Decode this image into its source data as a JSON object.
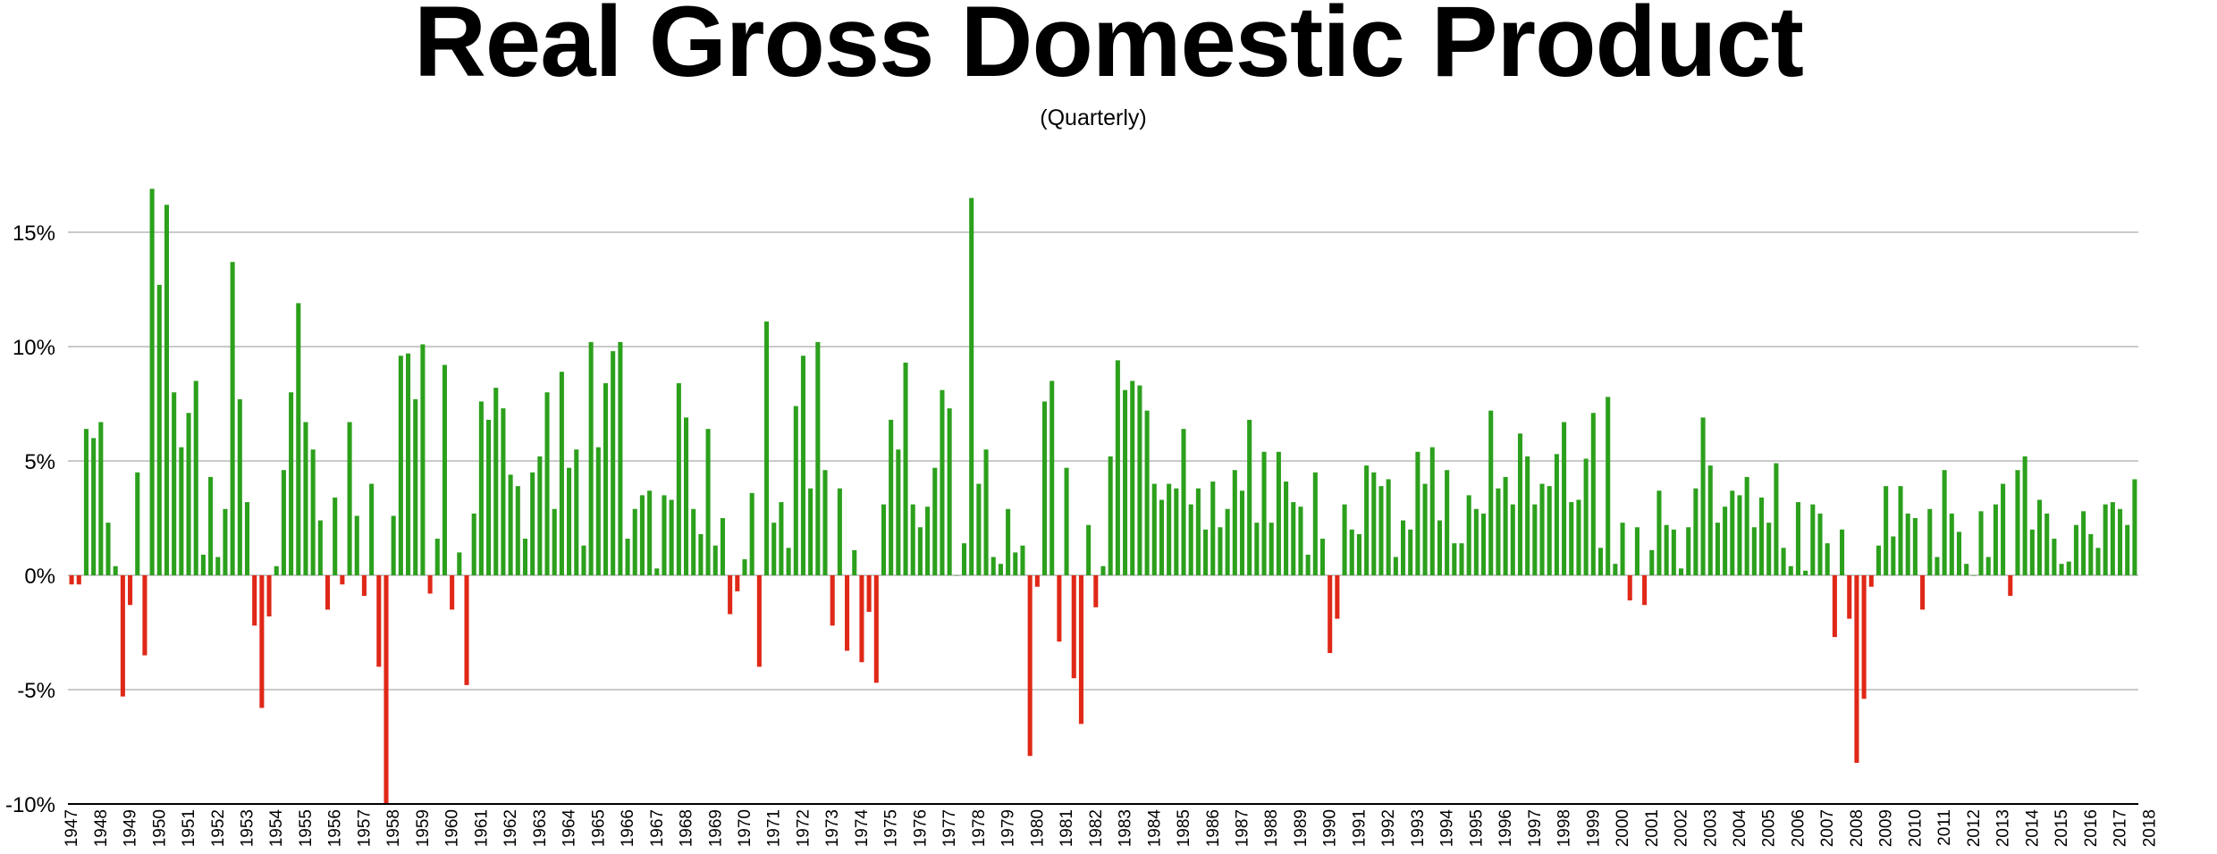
{
  "chart_data": {
    "type": "bar",
    "title": "Real Gross Domestic Product",
    "subtitle": "(Quarterly)",
    "xlabel": "",
    "ylabel": "",
    "ylim": [
      -10,
      17
    ],
    "y_ticks": [
      15,
      10,
      5,
      0,
      -5,
      -10
    ],
    "y_tick_labels": [
      "15%",
      "10%",
      "5%",
      "0%",
      "-5%",
      "-10%"
    ],
    "grid": true,
    "colors": {
      "positive": "#2ca01c",
      "negative": "#e02818",
      "grid": "#b8b8b8",
      "axis": "#000000"
    },
    "x_tick_labels": [
      "1947",
      "1948",
      "1949",
      "1950",
      "1951",
      "1952",
      "1953",
      "1954",
      "1955",
      "1956",
      "1957",
      "1958",
      "1959",
      "1960",
      "1961",
      "1962",
      "1963",
      "1964",
      "1965",
      "1966",
      "1967",
      "1968",
      "1969",
      "1970",
      "1971",
      "1972",
      "1973",
      "1974",
      "1975",
      "1976",
      "1977",
      "1978",
      "1979",
      "1980",
      "1981",
      "1982",
      "1983",
      "1984",
      "1985",
      "1986",
      "1987",
      "1988",
      "1989",
      "1990",
      "1991",
      "1992",
      "1993",
      "1994",
      "1995",
      "1996",
      "1997",
      "1998",
      "1999",
      "2000",
      "2001",
      "2002",
      "2003",
      "2004",
      "2005",
      "2006",
      "2007",
      "2008",
      "2009",
      "2010",
      "2011",
      "2012",
      "2013",
      "2014",
      "2015",
      "2016",
      "2017",
      "2018"
    ],
    "values": [
      -0.4,
      -0.4,
      6.4,
      6.0,
      6.7,
      2.3,
      0.4,
      -5.3,
      -1.3,
      4.5,
      -3.5,
      16.9,
      12.7,
      16.2,
      8.0,
      5.6,
      7.1,
      8.5,
      0.9,
      4.3,
      0.8,
      2.9,
      13.7,
      7.7,
      3.2,
      -2.2,
      -5.8,
      -1.8,
      0.4,
      4.6,
      8.0,
      11.9,
      6.7,
      5.5,
      2.4,
      -1.5,
      3.4,
      -0.4,
      6.7,
      2.6,
      -0.9,
      4.0,
      -4.0,
      -10.0,
      2.6,
      9.6,
      9.7,
      7.7,
      10.1,
      -0.8,
      1.6,
      9.2,
      -1.5,
      1.0,
      -4.8,
      2.7,
      7.6,
      6.8,
      8.2,
      7.3,
      4.4,
      3.9,
      1.6,
      4.5,
      5.2,
      8.0,
      2.9,
      8.9,
      4.7,
      5.5,
      1.3,
      10.2,
      5.6,
      8.4,
      9.8,
      10.2,
      1.6,
      2.9,
      3.5,
      3.7,
      0.3,
      3.5,
      3.3,
      8.4,
      6.9,
      2.9,
      1.8,
      6.4,
      1.3,
      2.5,
      -1.7,
      -0.7,
      0.7,
      3.6,
      -4.0,
      11.1,
      2.3,
      3.2,
      1.2,
      7.4,
      9.6,
      3.8,
      10.2,
      4.6,
      -2.2,
      3.8,
      -3.3,
      1.1,
      -3.8,
      -1.6,
      -4.7,
      3.1,
      6.8,
      5.5,
      9.3,
      3.1,
      2.1,
      3.0,
      4.7,
      8.1,
      7.3,
      0.0,
      1.4,
      16.5,
      4.0,
      5.5,
      0.8,
      0.5,
      2.9,
      1.0,
      1.3,
      -7.9,
      -0.5,
      7.6,
      8.5,
      -2.9,
      4.7,
      -4.5,
      -6.5,
      2.2,
      -1.4,
      0.4,
      5.2,
      9.4,
      8.1,
      8.5,
      8.3,
      7.2,
      4.0,
      3.3,
      4.0,
      3.8,
      6.4,
      3.1,
      3.8,
      2.0,
      4.1,
      2.1,
      2.9,
      4.6,
      3.7,
      6.8,
      2.3,
      5.4,
      2.3,
      5.4,
      4.1,
      3.2,
      3.0,
      0.9,
      4.5,
      1.6,
      -3.4,
      -1.9,
      3.1,
      2.0,
      1.8,
      4.8,
      4.5,
      3.9,
      4.2,
      0.8,
      2.4,
      2.0,
      5.4,
      4.0,
      5.6,
      2.4,
      4.6,
      1.4,
      1.4,
      3.5,
      2.9,
      2.7,
      7.2,
      3.8,
      4.3,
      3.1,
      6.2,
      5.2,
      3.1,
      4.0,
      3.9,
      5.3,
      6.7,
      3.2,
      3.3,
      5.1,
      7.1,
      1.2,
      7.8,
      0.5,
      2.3,
      -1.1,
      2.1,
      -1.3,
      1.1,
      3.7,
      2.2,
      2.0,
      0.3,
      2.1,
      3.8,
      6.9,
      4.8,
      2.3,
      3.0,
      3.7,
      3.5,
      4.3,
      2.1,
      3.4,
      2.3,
      4.9,
      1.2,
      0.4,
      3.2,
      0.2,
      3.1,
      2.7,
      1.4,
      -2.7,
      2.0,
      -1.9,
      -8.2,
      -5.4,
      -0.5,
      1.3,
      3.9,
      1.7,
      3.9,
      2.7,
      2.5,
      -1.5,
      2.9,
      0.8,
      4.6,
      2.7,
      1.9,
      0.5,
      0.0,
      2.8,
      0.8,
      3.1,
      4.0,
      -0.9,
      4.6,
      5.2,
      2.0,
      3.3,
      2.7,
      1.6,
      0.5,
      0.6,
      2.2,
      2.8,
      1.8,
      1.2,
      3.1,
      3.2,
      2.9,
      2.2,
      4.2
    ]
  }
}
